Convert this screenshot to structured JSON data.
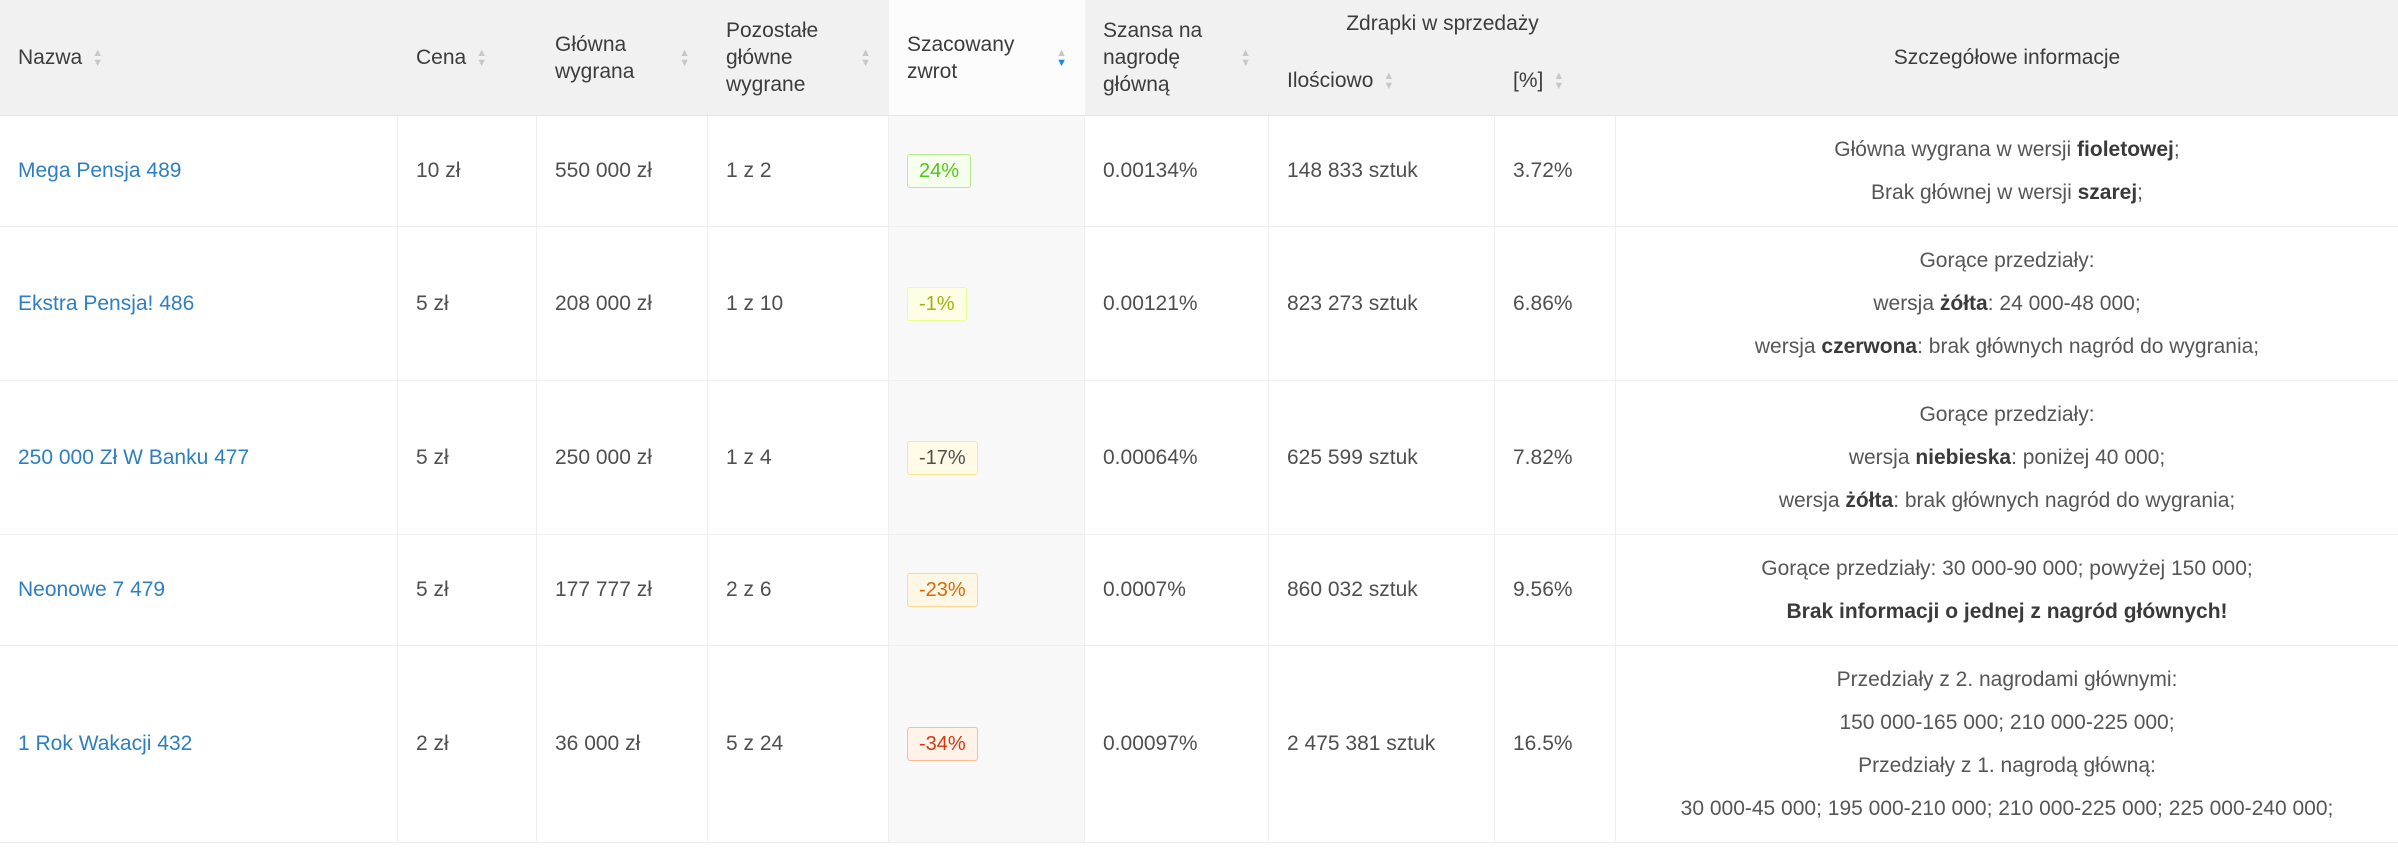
{
  "table": {
    "columns": {
      "nazwa": {
        "label": "Nazwa",
        "sortable": true
      },
      "cena": {
        "label": "Cena",
        "sortable": true
      },
      "glowna_wygrana": {
        "label": "Główna wygrana",
        "sortable": true
      },
      "pozostale_glowne_wygrane": {
        "label": "Pozostałe główne wygrane",
        "sortable": true
      },
      "szacowany_zwrot": {
        "label": "Szacowany zwrot",
        "sortable": true
      },
      "szansa_na_nagrode": {
        "label": "Szansa na nagrodę główną",
        "sortable": true
      },
      "zdrapki_w_sprzedazy": {
        "label": "Zdrapki w sprzedaży"
      },
      "ilosciowo": {
        "label": "Ilościowo",
        "sortable": true
      },
      "procent": {
        "label": "[%]",
        "sortable": true
      },
      "szczegolowe_informacje": {
        "label": "Szczegółowe informacje",
        "sortable": false
      }
    },
    "sort": {
      "column": "szacowany_zwrot",
      "direction": "desc"
    },
    "colors": {
      "link": "#2d7fc1",
      "active_sort_caret": "#1a86e8",
      "header_bg": "#f1f1f2"
    },
    "badge_tones": {
      "green": {
        "bg": "#f6ffed",
        "border": "#b7eb8f",
        "text": "#52c41a"
      },
      "lime": {
        "bg": "#fcffe6",
        "border": "#eaff8f",
        "text": "#9fb314"
      },
      "gold": {
        "bg": "#fffbe6",
        "border": "#ffe58f",
        "text": "#d China48806"
      },
      "orange": {
        "bg": "#fff7e6",
        "border": "#ffd591",
        "text": "#d46b08"
      },
      "volcano": {
        "bg": "#fff2e8",
        "border": "#ffbb96",
        "text": "#d4380d"
      }
    },
    "rows": [
      {
        "nazwa": "Mega Pensja 489",
        "cena": "10 zł",
        "glowna_wygrana": "550 000 zł",
        "pozostale_glowne_wygrane": "1 z 2",
        "zwrot": {
          "text": "24%",
          "tone": "green"
        },
        "szansa": "0.00134%",
        "ilosciowo": "148 833 sztuk",
        "procent": "3.72%",
        "szczegoly": [
          [
            {
              "t": "Główna wygrana w wersji "
            },
            {
              "t": "fioletowej",
              "b": true
            },
            {
              "t": ";"
            }
          ],
          [
            {
              "t": "Brak głównej w wersji "
            },
            {
              "t": "szarej",
              "b": true
            },
            {
              "t": ";"
            }
          ]
        ]
      },
      {
        "nazwa": "Ekstra Pensja! 486",
        "cena": "5 zł",
        "glowna_wygrana": "208 000 zł",
        "pozostale_glowne_wygrane": "1 z 10",
        "zwrot": {
          "text": "-1%",
          "tone": "lime"
        },
        "szansa": "0.00121%",
        "ilosciowo": "823 273 sztuk",
        "procent": "6.86%",
        "szczegoly": [
          [
            {
              "t": "Gorące przedziały:"
            }
          ],
          [
            {
              "t": "wersja "
            },
            {
              "t": "żółta",
              "b": true
            },
            {
              "t": ": 24 000-48 000;"
            }
          ],
          [
            {
              "t": "wersja "
            },
            {
              "t": "czerwona",
              "b": true
            },
            {
              "t": ": brak głównych nagród do wygrania;"
            }
          ]
        ]
      },
      {
        "nazwa": "250 000 Zł W Banku 477",
        "cena": "5 zł",
        "glowna_wygrana": "250 000 zł",
        "pozostale_glowne_wygrane": "1 z 4",
        "zwrot": {
          "text": "-17%",
          "tone": "gold"
        },
        "szansa": "0.00064%",
        "ilosciowo": "625 599 sztuk",
        "procent": "7.82%",
        "szczegoly": [
          [
            {
              "t": "Gorące przedziały:"
            }
          ],
          [
            {
              "t": "wersja "
            },
            {
              "t": "niebieska",
              "b": true
            },
            {
              "t": ": poniżej 40 000;"
            }
          ],
          [
            {
              "t": "wersja "
            },
            {
              "t": "żółta",
              "b": true
            },
            {
              "t": ": brak głównych nagród do wygrania;"
            }
          ]
        ]
      },
      {
        "nazwa": "Neonowe 7 479",
        "cena": "5 zł",
        "glowna_wygrana": "177 777 zł",
        "pozostale_glowne_wygrane": "2 z 6",
        "zwrot": {
          "text": "-23%",
          "tone": "orange"
        },
        "szansa": "0.0007%",
        "ilosciowo": "860 032 sztuk",
        "procent": "9.56%",
        "szczegoly": [
          [
            {
              "t": "Gorące przedziały: 30 000-90 000; powyżej 150 000;"
            }
          ],
          [
            {
              "t": "Brak informacji o jednej z nagród głównych!",
              "b": true
            }
          ]
        ]
      },
      {
        "nazwa": "1 Rok Wakacji 432",
        "cena": "2 zł",
        "glowna_wygrana": "36 000 zł",
        "pozostale_glowne_wygrane": "5 z 24",
        "zwrot": {
          "text": "-34%",
          "tone": "volcano"
        },
        "szansa": "0.00097%",
        "ilosciowo": "2 475 381 sztuk",
        "procent": "16.5%",
        "szczegoly": [
          [
            {
              "t": "Przedziały z 2. nagrodami głównymi:"
            }
          ],
          [
            {
              "t": "150 000-165 000; 210 000-225 000;"
            }
          ],
          [
            {
              "t": "Przedziały z 1. nagrodą główną:"
            }
          ],
          [
            {
              "t": "30 000-45 000; 195 000-210 000; 210 000-225 000; 225 000-240 000;"
            }
          ]
        ]
      }
    ]
  }
}
